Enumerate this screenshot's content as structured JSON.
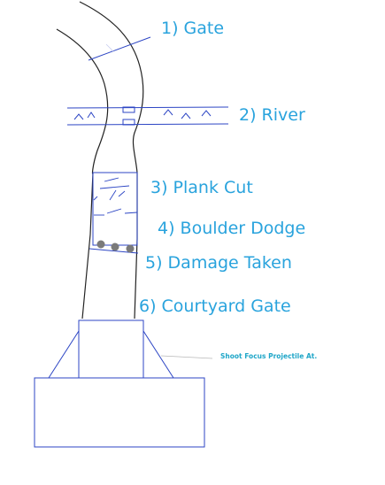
{
  "colors": {
    "label": "#29a3dd",
    "blueprint": "#2c45c4",
    "sketch": "#222222",
    "boulder": "#7a7a7a",
    "note": "#1fa6c8",
    "background": "#ffffff"
  },
  "labels": {
    "gate": "1) Gate",
    "river": "2) River",
    "plank_cut": "3) Plank Cut",
    "boulder_dodge": "4) Boulder Dodge",
    "damage_taken": "5) Damage Taken",
    "courtyard_gate": "6) Courtyard Gate"
  },
  "annotation": "Shoot Focus Projectile At."
}
